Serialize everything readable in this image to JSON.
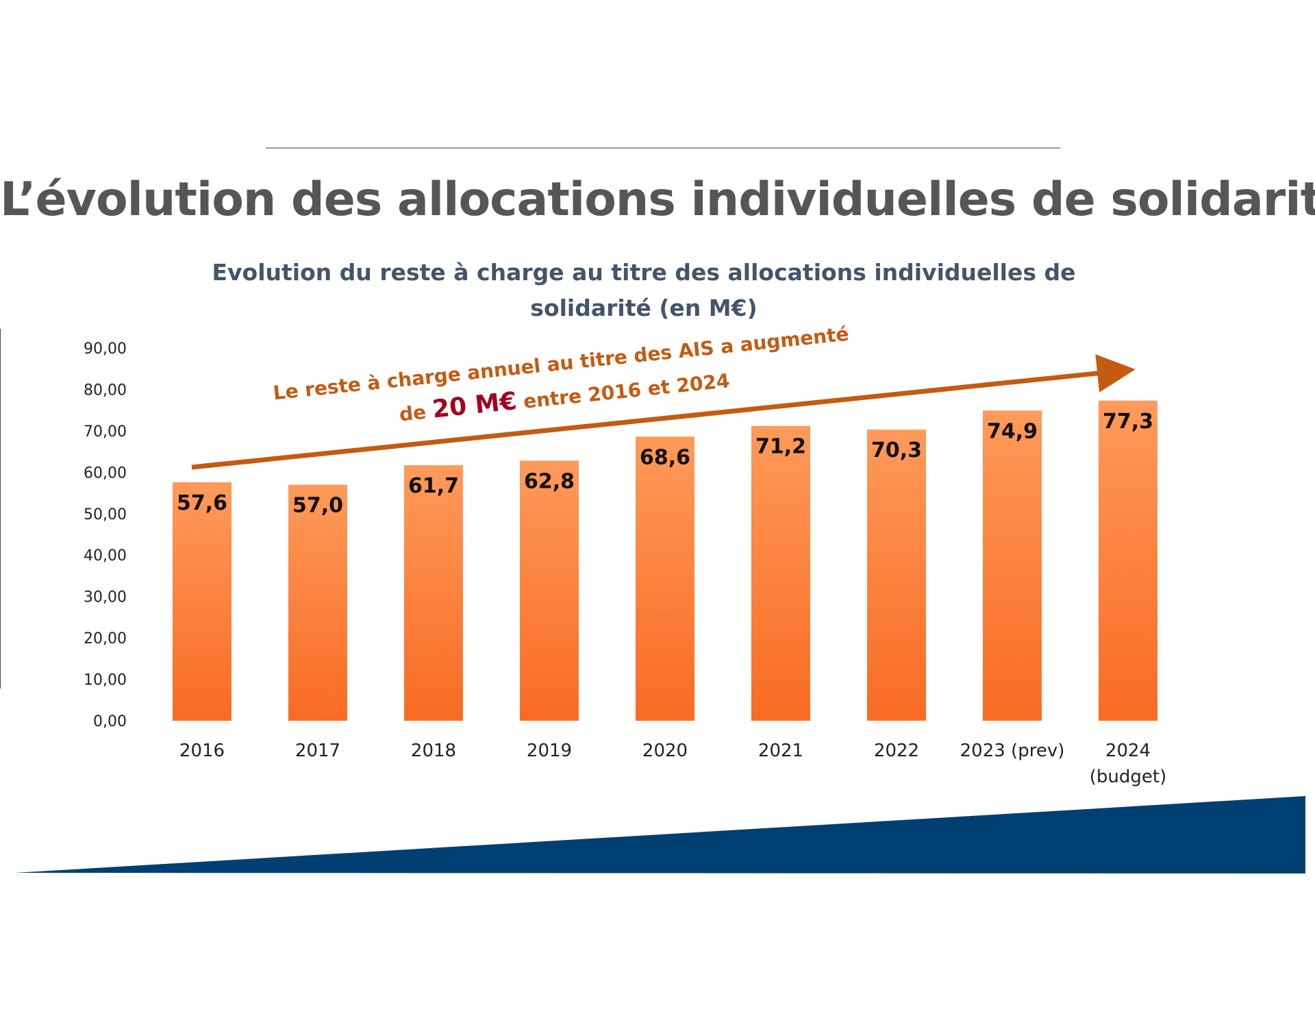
{
  "page": {
    "title": "L’évolution des allocations individuelles de solidarité"
  },
  "annotation": {
    "line1": "Le reste à charge annuel au titre des AIS a augmenté",
    "line2_prefix": "de ",
    "line2_highlight": "20 M€",
    "line2_suffix": " entre 2016 et 2024",
    "color": "#c55a11",
    "highlight_color": "#a50021"
  },
  "chart_data": {
    "type": "bar",
    "title": "Evolution du reste à charge au titre des allocations individuelles de solidarité (en M€)",
    "xlabel": "",
    "ylabel": "",
    "categories": [
      [
        "2016"
      ],
      [
        "2017"
      ],
      [
        "2018"
      ],
      [
        "2019"
      ],
      [
        "2020"
      ],
      [
        "2021"
      ],
      [
        "2022"
      ],
      [
        "2023 (prev)"
      ],
      [
        "2024",
        "(budget)"
      ]
    ],
    "values": [
      57.6,
      57.0,
      61.7,
      62.8,
      68.6,
      71.2,
      70.3,
      74.9,
      77.3
    ],
    "data_labels": [
      "57,6",
      "57,0",
      "61,7",
      "62,8",
      "68,6",
      "71,2",
      "70,3",
      "74,9",
      "77,3"
    ],
    "yticks": [
      "0,00",
      "10,00",
      "20,00",
      "30,00",
      "40,00",
      "50,00",
      "60,00",
      "70,00",
      "80,00",
      "90,00"
    ],
    "ylim": [
      0,
      90
    ],
    "grid": false,
    "legend": "none",
    "bar_color_top": "#ff9a5a",
    "bar_color_bottom": "#f96b24"
  },
  "colors": {
    "title": "#565656",
    "chart_title": "#44546a",
    "footer_band": "#003f72"
  }
}
